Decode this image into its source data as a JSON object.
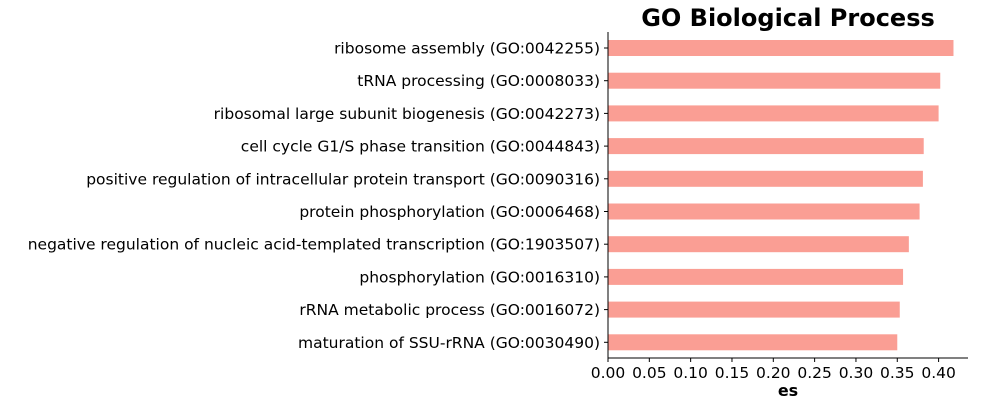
{
  "chart_data": {
    "type": "bar",
    "orientation": "horizontal",
    "title": "GO Biological Process",
    "xlabel": "es",
    "ylabel": "",
    "xlim": [
      0,
      0.44
    ],
    "x_ticks": [
      "0.00",
      "0.05",
      "0.10",
      "0.15",
      "0.20",
      "0.25",
      "0.30",
      "0.35",
      "0.40"
    ],
    "categories": [
      "ribosome assembly (GO:0042255)",
      "tRNA processing (GO:0008033)",
      "ribosomal large subunit biogenesis (GO:0042273)",
      "cell cycle G1/S phase transition (GO:0044843)",
      "positive regulation of intracellular protein transport (GO:0090316)",
      "protein phosphorylation (GO:0006468)",
      "negative regulation of nucleic acid-templated transcription (GO:1903507)",
      "phosphorylation (GO:0016310)",
      "rRNA metabolic process (GO:0016072)",
      "maturation of SSU-rRNA (GO:0030490)"
    ],
    "values": [
      0.418,
      0.402,
      0.4,
      0.382,
      0.381,
      0.377,
      0.364,
      0.357,
      0.353,
      0.35
    ],
    "bar_color": "#fa9e94",
    "grid": false,
    "legend": "none"
  }
}
